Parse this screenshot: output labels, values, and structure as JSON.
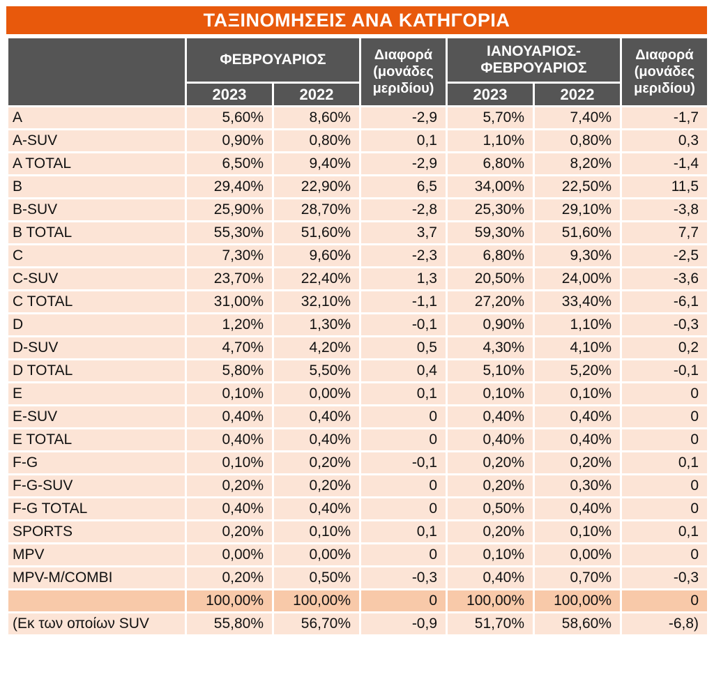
{
  "title": "ΤΑΞΙΝΟΜΗΣΕΙΣ ΑΝΑ ΚΑΤΗΓΟΡΙΑ",
  "header": {
    "group1": "ΦΕΒΡΟΥΑΡΙΟΣ",
    "diff1": "Διαφορά (μονάδες μεριδίου)",
    "group2": "ΙΑΝΟΥΑΡΙΟΣ-ΦΕΒΡΟΥΑΡΙΟΣ",
    "diff2": "Διαφορά (μονάδες μεριδίου)",
    "year_a": "2023",
    "year_b": "2022",
    "year_c": "2023",
    "year_d": "2022"
  },
  "rows": [
    [
      "A",
      "5,60%",
      "8,60%",
      "-2,9",
      "5,70%",
      "7,40%",
      "-1,7"
    ],
    [
      "A-SUV",
      "0,90%",
      "0,80%",
      "0,1",
      "1,10%",
      "0,80%",
      "0,3"
    ],
    [
      "A TOTAL",
      "6,50%",
      "9,40%",
      "-2,9",
      "6,80%",
      "8,20%",
      "-1,4"
    ],
    [
      "B",
      "29,40%",
      "22,90%",
      "6,5",
      "34,00%",
      "22,50%",
      "11,5"
    ],
    [
      "B-SUV",
      "25,90%",
      "28,70%",
      "-2,8",
      "25,30%",
      "29,10%",
      "-3,8"
    ],
    [
      "B TOTAL",
      "55,30%",
      "51,60%",
      "3,7",
      "59,30%",
      "51,60%",
      "7,7"
    ],
    [
      "C",
      "7,30%",
      "9,60%",
      "-2,3",
      "6,80%",
      "9,30%",
      "-2,5"
    ],
    [
      "C-SUV",
      "23,70%",
      "22,40%",
      "1,3",
      "20,50%",
      "24,00%",
      "-3,6"
    ],
    [
      "C TOTAL",
      "31,00%",
      "32,10%",
      "-1,1",
      "27,20%",
      "33,40%",
      "-6,1"
    ],
    [
      "D",
      "1,20%",
      "1,30%",
      "-0,1",
      "0,90%",
      "1,10%",
      "-0,3"
    ],
    [
      "D-SUV",
      "4,70%",
      "4,20%",
      "0,5",
      "4,30%",
      "4,10%",
      "0,2"
    ],
    [
      "D TOTAL",
      "5,80%",
      "5,50%",
      "0,4",
      "5,10%",
      "5,20%",
      "-0,1"
    ],
    [
      "E",
      "0,10%",
      "0,00%",
      "0,1",
      "0,10%",
      "0,10%",
      "0"
    ],
    [
      "E-SUV",
      "0,40%",
      "0,40%",
      "0",
      "0,40%",
      "0,40%",
      "0"
    ],
    [
      "E TOTAL",
      "0,40%",
      "0,40%",
      "0",
      "0,40%",
      "0,40%",
      "0"
    ],
    [
      "F-G",
      "0,10%",
      "0,20%",
      "-0,1",
      "0,20%",
      "0,20%",
      "0,1"
    ],
    [
      "F-G-SUV",
      "0,20%",
      "0,20%",
      "0",
      "0,20%",
      "0,30%",
      "0"
    ],
    [
      "F-G TOTAL",
      "0,40%",
      "0,40%",
      "0",
      "0,50%",
      "0,40%",
      "0"
    ],
    [
      "SPORTS",
      "0,20%",
      "0,10%",
      "0,1",
      "0,20%",
      "0,10%",
      "0,1"
    ],
    [
      "MPV",
      "0,00%",
      "0,00%",
      "0",
      "0,10%",
      "0,00%",
      "0"
    ],
    [
      "MPV-M/COMBI",
      "0,20%",
      "0,50%",
      "-0,3",
      "0,40%",
      "0,70%",
      "-0,3"
    ]
  ],
  "total_row": [
    "",
    "100,00%",
    "100,00%",
    "0",
    "100,00%",
    "100,00%",
    "0"
  ],
  "suv_row": [
    "(Εκ των οποίων SUV",
    "55,80%",
    "56,70%",
    "-0,9",
    "51,70%",
    "58,60%",
    "-6,8)"
  ],
  "colors": {
    "title_bg": "#e8590c",
    "header_bg": "#555555",
    "row_bg": "#fce4d6",
    "total_bg": "#f8c9a9"
  }
}
